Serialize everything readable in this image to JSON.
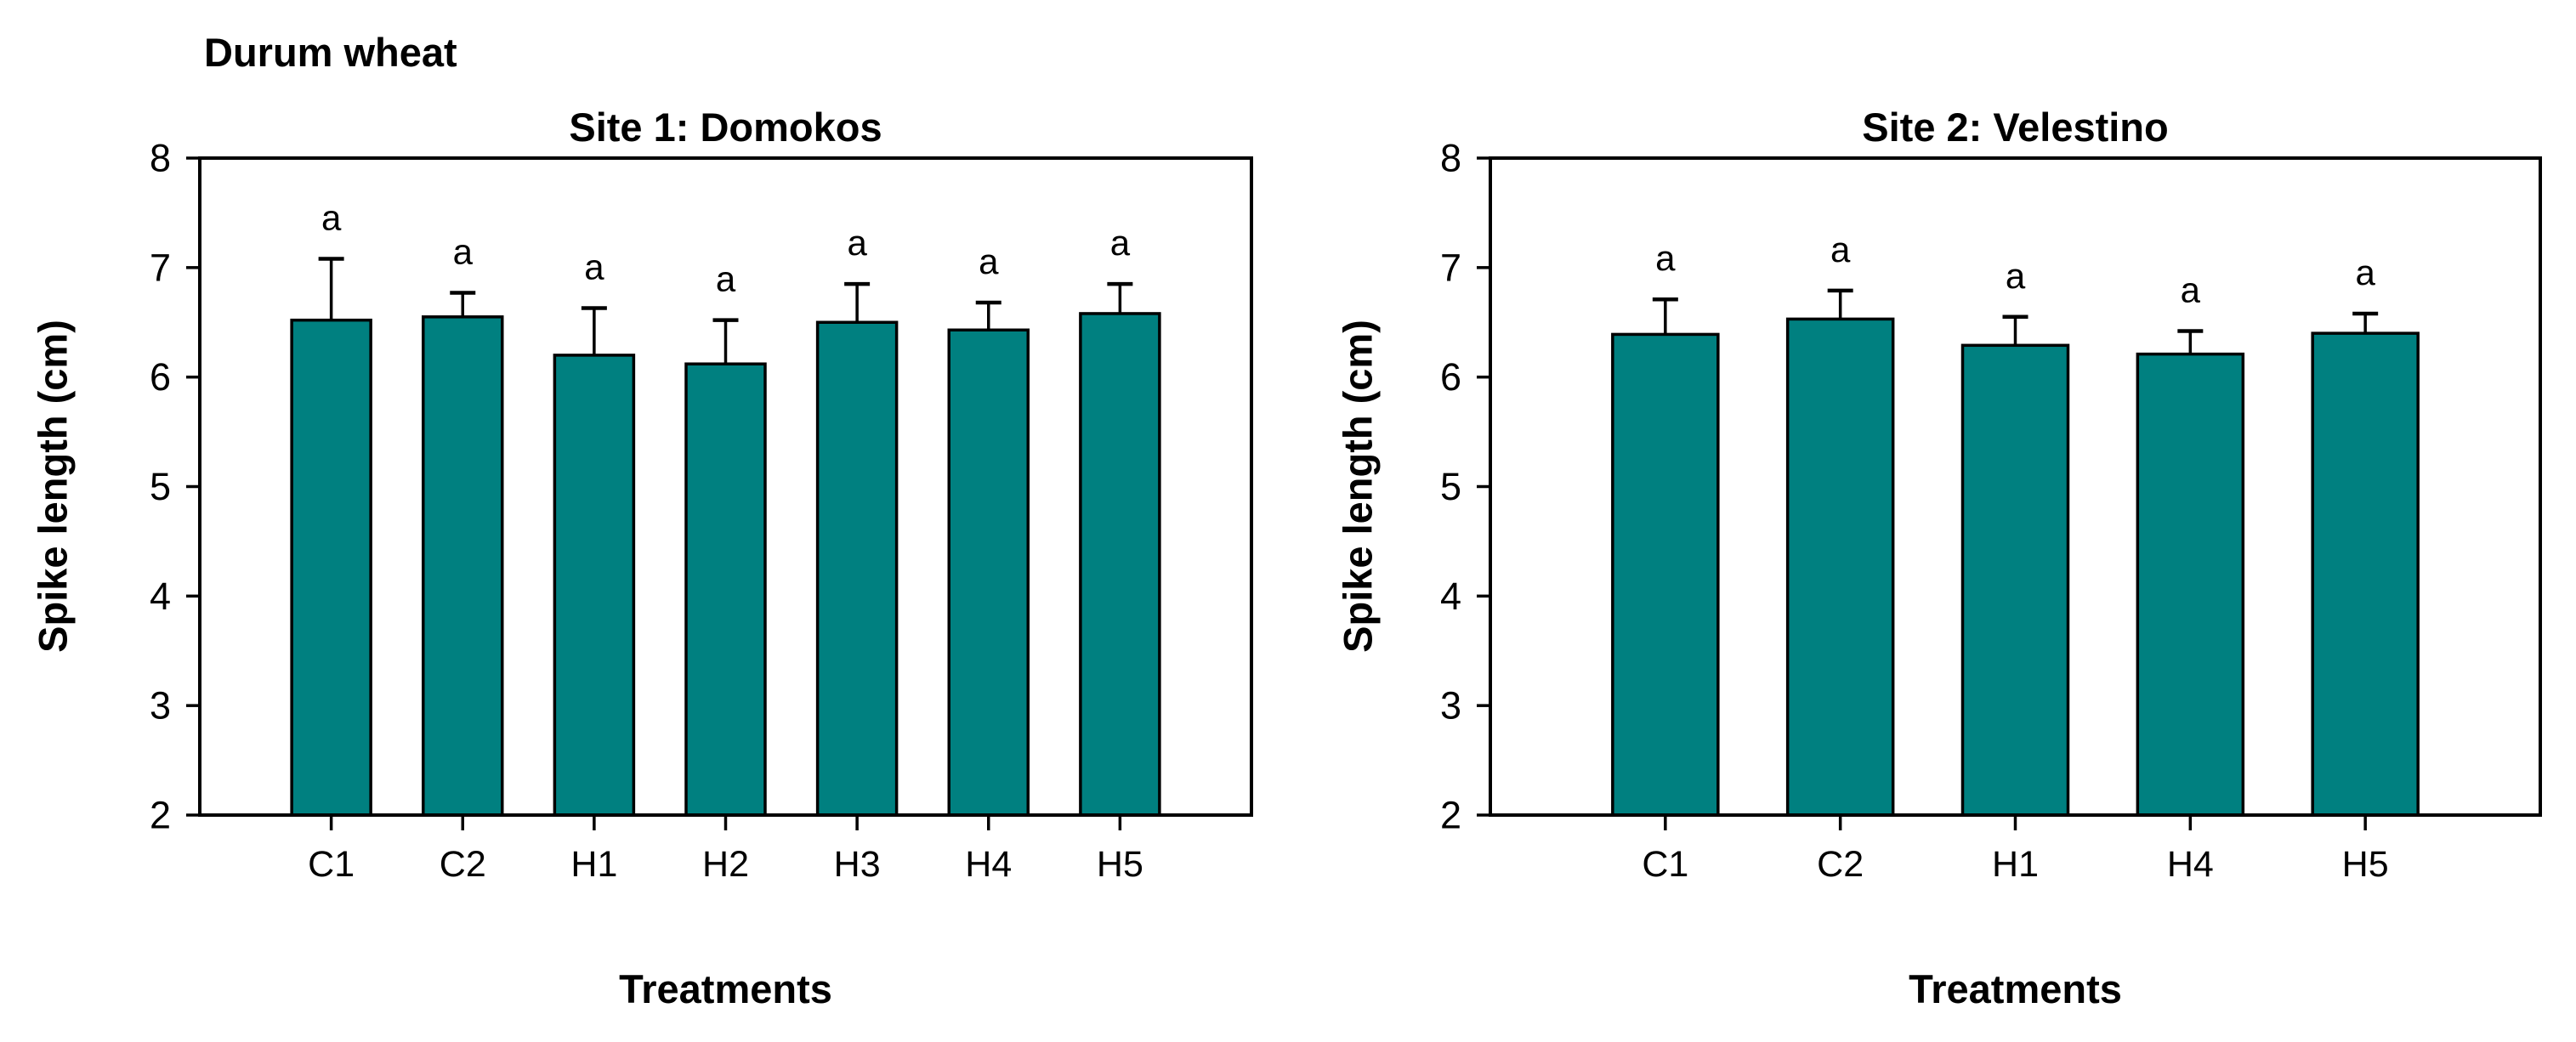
{
  "figure": {
    "label": "Durum wheat"
  },
  "chart_data": [
    {
      "type": "bar",
      "title": "Site 1: Domokos",
      "xlabel": "Treatments",
      "ylabel": "Spike length (cm)",
      "categories": [
        "C1",
        "C2",
        "H1",
        "H2",
        "H3",
        "H4",
        "H5"
      ],
      "values": [
        6.52,
        6.55,
        6.2,
        6.12,
        6.5,
        6.43,
        6.58
      ],
      "errors": [
        0.56,
        0.22,
        0.43,
        0.4,
        0.35,
        0.25,
        0.27
      ],
      "sig_letters": [
        "a",
        "a",
        "a",
        "a",
        "a",
        "a",
        "a"
      ],
      "ylim": [
        2,
        8
      ],
      "yticks": [
        2,
        3,
        4,
        5,
        6,
        7,
        8
      ],
      "grid": false,
      "legend_position": "none",
      "bar_color": "#008080",
      "bar_border_color": "#000000",
      "error_bar_direction": "up"
    },
    {
      "type": "bar",
      "title": "Site 2: Velestino",
      "xlabel": "Treatments",
      "ylabel": "Spike length (cm)",
      "categories": [
        "C1",
        "C2",
        "H1",
        "H4",
        "H5"
      ],
      "values": [
        6.39,
        6.53,
        6.29,
        6.21,
        6.4
      ],
      "errors": [
        0.32,
        0.26,
        0.26,
        0.21,
        0.18
      ],
      "sig_letters": [
        "a",
        "a",
        "a",
        "a",
        "a"
      ],
      "ylim": [
        2,
        8
      ],
      "yticks": [
        2,
        3,
        4,
        5,
        6,
        7,
        8
      ],
      "grid": false,
      "legend_position": "none",
      "bar_color": "#008080",
      "bar_border_color": "#000000",
      "error_bar_direction": "up"
    }
  ]
}
